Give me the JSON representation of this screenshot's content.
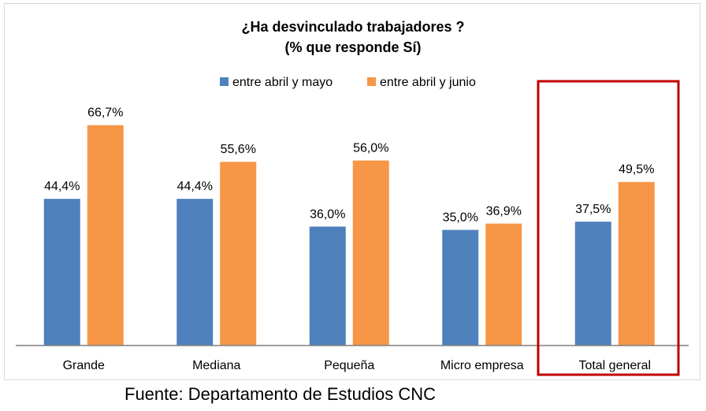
{
  "chart_data": {
    "type": "bar",
    "title": "¿Ha desvinculado trabajadores ?",
    "subtitle": "(% que responde Sí)",
    "categories": [
      "Grande",
      "Mediana",
      "Pequeña",
      "Micro empresa",
      "Total general"
    ],
    "series": [
      {
        "name": "entre abril y mayo",
        "color": "#4f81bd",
        "values": [
          44.4,
          44.4,
          36.0,
          35.0,
          37.5
        ],
        "labels": [
          "44,4%",
          "44,4%",
          "36,0%",
          "35,0%",
          "37,5%"
        ]
      },
      {
        "name": "entre abril y junio",
        "color": "#f79646",
        "values": [
          66.7,
          55.6,
          56.0,
          36.9,
          49.5
        ],
        "labels": [
          "66,7%",
          "55,6%",
          "56,0%",
          "36,9%",
          "49,5%"
        ]
      }
    ],
    "ylim": [
      0,
      80
    ],
    "grid": false,
    "legend_position": "top",
    "highlight": {
      "category": "Total general",
      "color": "#c00000"
    }
  },
  "source_note": "Fuente: Departamento de Estudios CNC"
}
